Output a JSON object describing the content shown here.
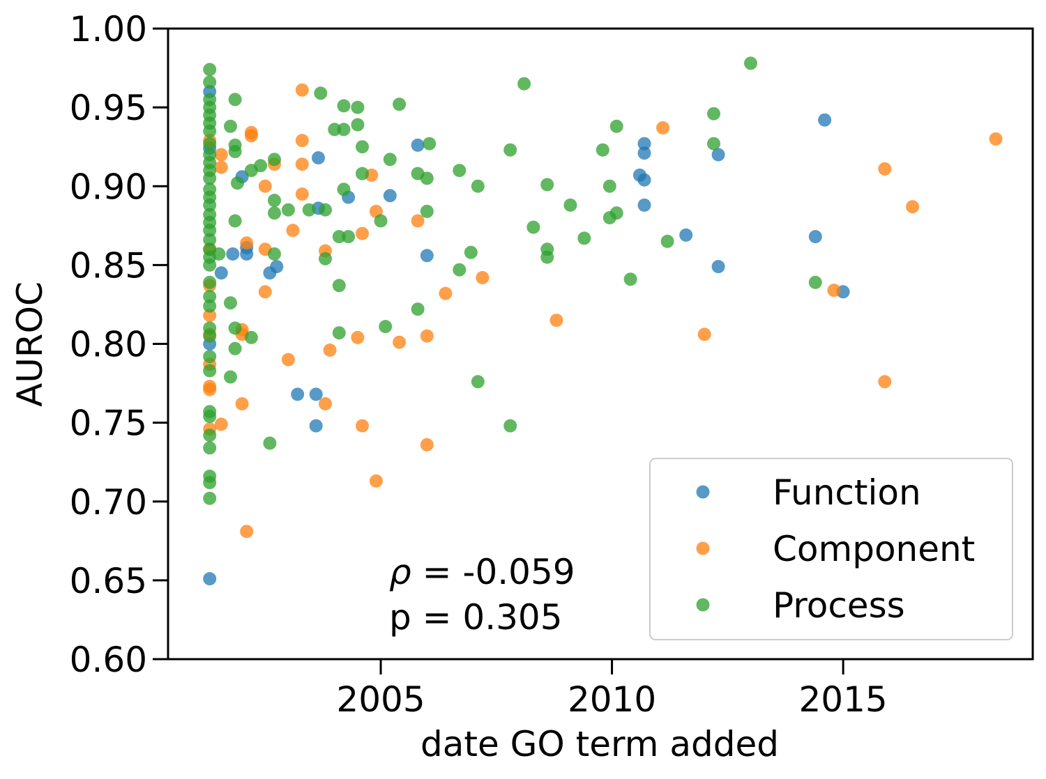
{
  "chart_data": {
    "type": "scatter",
    "title": "",
    "xlabel": "date GO term added",
    "ylabel": "AUROC",
    "xlim": [
      2000.4,
      2019.1
    ],
    "ylim": [
      0.6,
      1.0
    ],
    "x_ticks": [
      {
        "value": 2005,
        "label": "2005"
      },
      {
        "value": 2010,
        "label": "2010"
      },
      {
        "value": 2015,
        "label": "2015"
      }
    ],
    "y_ticks": [
      {
        "value": 0.6,
        "label": "0.60"
      },
      {
        "value": 0.65,
        "label": "0.65"
      },
      {
        "value": 0.7,
        "label": "0.70"
      },
      {
        "value": 0.75,
        "label": "0.75"
      },
      {
        "value": 0.8,
        "label": "0.80"
      },
      {
        "value": 0.85,
        "label": "0.85"
      },
      {
        "value": 0.9,
        "label": "0.90"
      },
      {
        "value": 0.95,
        "label": "0.95"
      },
      {
        "value": 1.0,
        "label": "1.00"
      }
    ],
    "grid": false,
    "legend_position": "bottom-right",
    "annotation": {
      "rho_symbol": "ρ",
      "rho_text": " = -0.059",
      "p_text": "p = 0.305"
    },
    "series": [
      {
        "name": "Function",
        "color": "#1f77b4",
        "points": [
          [
            2001.3,
            0.651
          ],
          [
            2001.3,
            0.96
          ],
          [
            2001.3,
            0.924
          ],
          [
            2001.3,
            0.8
          ],
          [
            2001.55,
            0.845
          ],
          [
            2001.8,
            0.857
          ],
          [
            2002.0,
            0.906
          ],
          [
            2002.1,
            0.861
          ],
          [
            2002.1,
            0.857
          ],
          [
            2002.6,
            0.845
          ],
          [
            2002.75,
            0.849
          ],
          [
            2003.2,
            0.768
          ],
          [
            2003.6,
            0.768
          ],
          [
            2003.6,
            0.748
          ],
          [
            2003.65,
            0.918
          ],
          [
            2003.65,
            0.886
          ],
          [
            2004.3,
            0.893
          ],
          [
            2005.2,
            0.894
          ],
          [
            2005.8,
            0.926
          ],
          [
            2006.0,
            0.856
          ],
          [
            2010.6,
            0.907
          ],
          [
            2010.7,
            0.927
          ],
          [
            2010.7,
            0.921
          ],
          [
            2010.7,
            0.904
          ],
          [
            2010.7,
            0.888
          ],
          [
            2011.6,
            0.869
          ],
          [
            2012.3,
            0.92
          ],
          [
            2012.3,
            0.849
          ],
          [
            2014.4,
            0.868
          ],
          [
            2014.6,
            0.942
          ],
          [
            2015.0,
            0.833
          ]
        ]
      },
      {
        "name": "Component",
        "color": "#ff7f0e",
        "points": [
          [
            2001.3,
            0.929
          ],
          [
            2001.3,
            0.86
          ],
          [
            2001.3,
            0.837
          ],
          [
            2001.3,
            0.818
          ],
          [
            2001.3,
            0.806
          ],
          [
            2001.3,
            0.787
          ],
          [
            2001.3,
            0.773
          ],
          [
            2001.3,
            0.771
          ],
          [
            2001.3,
            0.746
          ],
          [
            2001.55,
            0.92
          ],
          [
            2001.55,
            0.912
          ],
          [
            2001.55,
            0.749
          ],
          [
            2002.0,
            0.809
          ],
          [
            2002.0,
            0.806
          ],
          [
            2002.0,
            0.762
          ],
          [
            2002.1,
            0.864
          ],
          [
            2002.1,
            0.681
          ],
          [
            2002.2,
            0.934
          ],
          [
            2002.2,
            0.932
          ],
          [
            2002.5,
            0.9
          ],
          [
            2002.5,
            0.86
          ],
          [
            2002.5,
            0.833
          ],
          [
            2002.7,
            0.914
          ],
          [
            2003.0,
            0.79
          ],
          [
            2003.1,
            0.872
          ],
          [
            2003.3,
            0.961
          ],
          [
            2003.3,
            0.929
          ],
          [
            2003.3,
            0.914
          ],
          [
            2003.3,
            0.895
          ],
          [
            2003.8,
            0.859
          ],
          [
            2003.8,
            0.762
          ],
          [
            2003.9,
            0.796
          ],
          [
            2004.5,
            0.804
          ],
          [
            2004.6,
            0.87
          ],
          [
            2004.6,
            0.748
          ],
          [
            2004.8,
            0.907
          ],
          [
            2004.9,
            0.884
          ],
          [
            2004.9,
            0.713
          ],
          [
            2005.4,
            0.801
          ],
          [
            2005.8,
            0.878
          ],
          [
            2006.0,
            0.805
          ],
          [
            2006.0,
            0.736
          ],
          [
            2006.4,
            0.832
          ],
          [
            2007.2,
            0.842
          ],
          [
            2008.8,
            0.815
          ],
          [
            2011.1,
            0.937
          ],
          [
            2012.0,
            0.806
          ],
          [
            2014.8,
            0.834
          ],
          [
            2015.9,
            0.911
          ],
          [
            2015.9,
            0.776
          ],
          [
            2016.5,
            0.887
          ],
          [
            2018.3,
            0.93
          ]
        ]
      },
      {
        "name": "Process",
        "color": "#2ca02c",
        "points": [
          [
            2001.3,
            0.974
          ],
          [
            2001.3,
            0.966
          ],
          [
            2001.3,
            0.955
          ],
          [
            2001.3,
            0.95
          ],
          [
            2001.3,
            0.945
          ],
          [
            2001.3,
            0.94
          ],
          [
            2001.3,
            0.935
          ],
          [
            2001.3,
            0.927
          ],
          [
            2001.3,
            0.92
          ],
          [
            2001.3,
            0.915
          ],
          [
            2001.3,
            0.91
          ],
          [
            2001.3,
            0.905
          ],
          [
            2001.3,
            0.898
          ],
          [
            2001.3,
            0.893
          ],
          [
            2001.3,
            0.888
          ],
          [
            2001.3,
            0.882
          ],
          [
            2001.3,
            0.877
          ],
          [
            2001.3,
            0.872
          ],
          [
            2001.3,
            0.866
          ],
          [
            2001.3,
            0.86
          ],
          [
            2001.3,
            0.855
          ],
          [
            2001.3,
            0.85
          ],
          [
            2001.3,
            0.839
          ],
          [
            2001.3,
            0.83
          ],
          [
            2001.3,
            0.824
          ],
          [
            2001.3,
            0.81
          ],
          [
            2001.3,
            0.805
          ],
          [
            2001.3,
            0.792
          ],
          [
            2001.3,
            0.783
          ],
          [
            2001.3,
            0.757
          ],
          [
            2001.3,
            0.754
          ],
          [
            2001.3,
            0.742
          ],
          [
            2001.3,
            0.734
          ],
          [
            2001.3,
            0.716
          ],
          [
            2001.3,
            0.712
          ],
          [
            2001.3,
            0.702
          ],
          [
            2001.5,
            0.857
          ],
          [
            2001.75,
            0.938
          ],
          [
            2001.75,
            0.826
          ],
          [
            2001.75,
            0.779
          ],
          [
            2001.85,
            0.955
          ],
          [
            2001.85,
            0.926
          ],
          [
            2001.85,
            0.922
          ],
          [
            2001.85,
            0.878
          ],
          [
            2001.85,
            0.81
          ],
          [
            2001.85,
            0.797
          ],
          [
            2001.9,
            0.902
          ],
          [
            2002.2,
            0.91
          ],
          [
            2002.2,
            0.804
          ],
          [
            2002.4,
            0.913
          ],
          [
            2002.6,
            0.737
          ],
          [
            2002.7,
            0.917
          ],
          [
            2002.7,
            0.891
          ],
          [
            2002.7,
            0.883
          ],
          [
            2002.7,
            0.857
          ],
          [
            2003.0,
            0.885
          ],
          [
            2003.45,
            0.885
          ],
          [
            2003.7,
            0.959
          ],
          [
            2003.8,
            0.885
          ],
          [
            2003.8,
            0.854
          ],
          [
            2004.0,
            0.936
          ],
          [
            2004.1,
            0.837
          ],
          [
            2004.1,
            0.868
          ],
          [
            2004.1,
            0.807
          ],
          [
            2004.2,
            0.951
          ],
          [
            2004.2,
            0.936
          ],
          [
            2004.2,
            0.898
          ],
          [
            2004.3,
            0.868
          ],
          [
            2004.5,
            0.939
          ],
          [
            2004.5,
            0.95
          ],
          [
            2004.6,
            0.925
          ],
          [
            2004.6,
            0.908
          ],
          [
            2005.0,
            0.878
          ],
          [
            2005.1,
            0.811
          ],
          [
            2005.2,
            0.917
          ],
          [
            2005.4,
            0.952
          ],
          [
            2005.8,
            0.908
          ],
          [
            2005.8,
            0.822
          ],
          [
            2006.0,
            0.905
          ],
          [
            2006.0,
            0.884
          ],
          [
            2006.05,
            0.927
          ],
          [
            2006.7,
            0.91
          ],
          [
            2006.7,
            0.847
          ],
          [
            2006.95,
            0.858
          ],
          [
            2007.1,
            0.776
          ],
          [
            2007.1,
            0.9
          ],
          [
            2007.8,
            0.923
          ],
          [
            2007.8,
            0.748
          ],
          [
            2008.1,
            0.965
          ],
          [
            2008.3,
            0.874
          ],
          [
            2008.6,
            0.901
          ],
          [
            2008.6,
            0.86
          ],
          [
            2008.6,
            0.855
          ],
          [
            2009.1,
            0.888
          ],
          [
            2009.4,
            0.867
          ],
          [
            2009.8,
            0.923
          ],
          [
            2009.95,
            0.9
          ],
          [
            2009.95,
            0.88
          ],
          [
            2010.1,
            0.938
          ],
          [
            2010.1,
            0.883
          ],
          [
            2010.4,
            0.841
          ],
          [
            2011.2,
            0.865
          ],
          [
            2012.2,
            0.946
          ],
          [
            2012.2,
            0.927
          ],
          [
            2013.0,
            0.978
          ],
          [
            2014.4,
            0.839
          ]
        ]
      }
    ]
  }
}
